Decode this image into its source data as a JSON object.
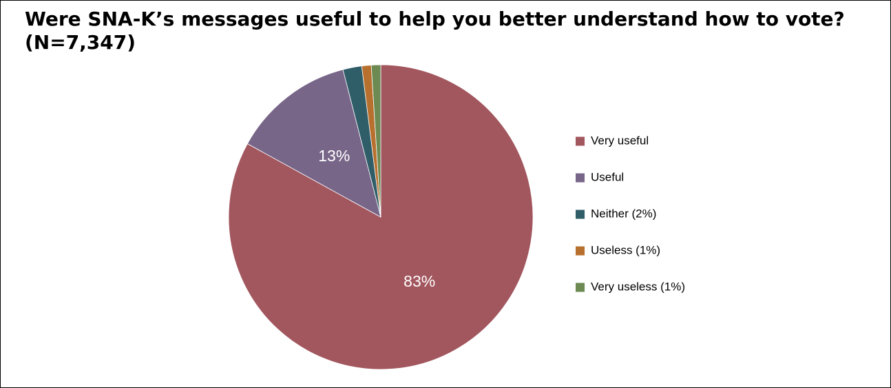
{
  "chart_data": {
    "type": "pie",
    "title": "Were SNA-K’s messages useful to help you better understand how to vote?",
    "subtitle": "(N=7,347)",
    "legend_position": "right",
    "start_angle_deg": 0,
    "direction": "clockwise",
    "slices": [
      {
        "label": "Very useful",
        "value": 83,
        "color": "#a2565e",
        "data_label": "83%"
      },
      {
        "label": "Useful",
        "value": 13,
        "color": "#786689",
        "data_label": "13%"
      },
      {
        "label": "Neither (2%)",
        "value": 2,
        "color": "#2f5d68",
        "data_label": ""
      },
      {
        "label": "Useless (1%)",
        "value": 1,
        "color": "#b8702f",
        "data_label": ""
      },
      {
        "label": "Very useless (1%)",
        "value": 1,
        "color": "#6c8a52",
        "data_label": ""
      }
    ]
  }
}
